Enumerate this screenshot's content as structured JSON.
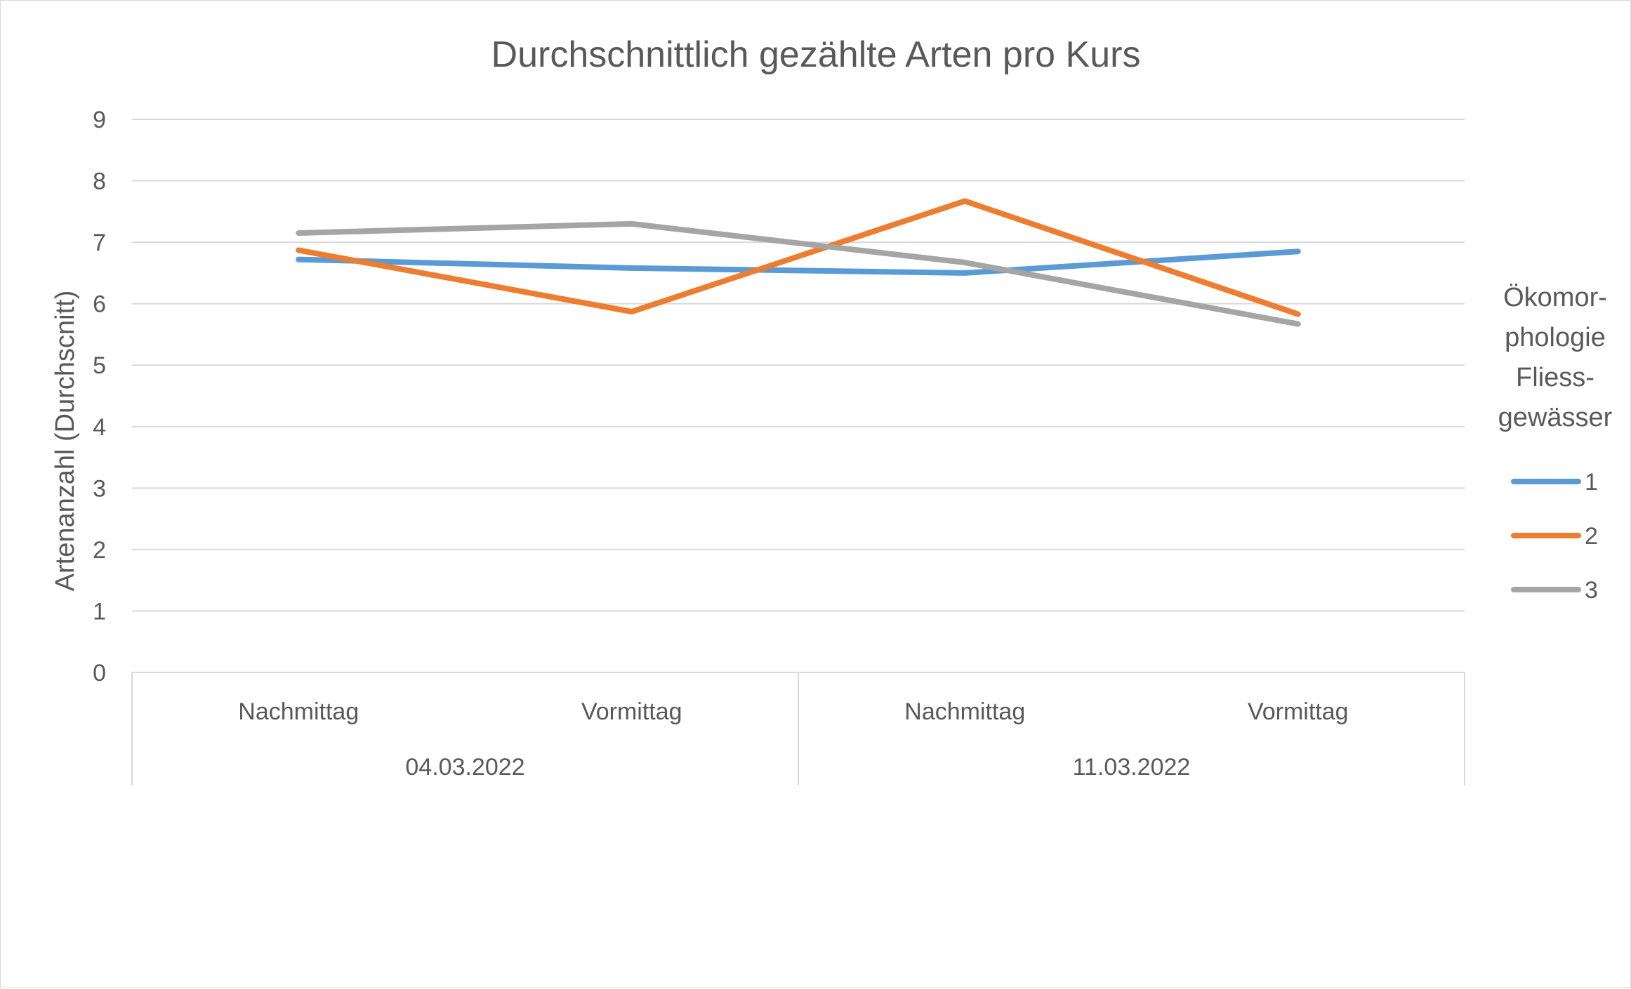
{
  "chart_data": {
    "type": "line",
    "title": "Durchschnittlich gezählte Arten pro Kurs",
    "xlabel": "",
    "ylabel": "Artenanzahl (Durchscnitt)",
    "ylim": [
      0,
      9
    ],
    "yticks": [
      "0",
      "1",
      "2",
      "3",
      "4",
      "5",
      "6",
      "7",
      "8",
      "9"
    ],
    "grid": true,
    "legend_position": "right",
    "legend_title_lines": [
      "Ökomor-",
      "phologie",
      "Fliess-",
      "gewässer"
    ],
    "categories": [
      "Nachmittag",
      "Vormittag",
      "Nachmittag",
      "Vormittag"
    ],
    "groups": [
      {
        "label": "04.03.2022",
        "span": 2
      },
      {
        "label": "11.03.2022",
        "span": 2
      }
    ],
    "series": [
      {
        "name": "1",
        "color": "#5b9bd5",
        "values": [
          6.72,
          6.58,
          6.5,
          6.85
        ]
      },
      {
        "name": "2",
        "color": "#ed7d31",
        "values": [
          6.87,
          5.87,
          7.67,
          5.83
        ]
      },
      {
        "name": "3",
        "color": "#a5a5a5",
        "values": [
          7.15,
          7.3,
          6.67,
          5.67
        ]
      }
    ]
  }
}
